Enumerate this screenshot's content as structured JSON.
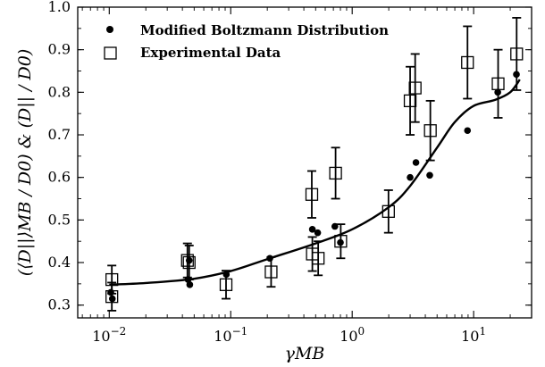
{
  "chart_data": {
    "type": "scatter",
    "xscale": "log",
    "xlim": [
      0.0055,
      30
    ],
    "ylim": [
      0.27,
      1.0
    ],
    "grid": false,
    "legend_position": "top-left",
    "xlabel": "γMB",
    "ylabel": "(⟨D||⟩MB / D0) & (D|| / D0)",
    "x_ticks": [
      {
        "value": 0.01,
        "base": "10",
        "exp": "−2"
      },
      {
        "value": 0.1,
        "base": "10",
        "exp": "−1"
      },
      {
        "value": 1,
        "base": "10",
        "exp": "0"
      },
      {
        "value": 10,
        "base": "10",
        "exp": "1"
      }
    ],
    "y_ticks": [
      "0.3",
      "0.4",
      "0.5",
      "0.6",
      "0.7",
      "0.8",
      "0.9",
      "1.0"
    ],
    "series": [
      {
        "name": "Modified Boltzmann Distribution",
        "marker": "dot",
        "points": [
          {
            "x": 0.0103,
            "y": 0.33
          },
          {
            "x": 0.0106,
            "y": 0.315
          },
          {
            "x": 0.0445,
            "y": 0.36
          },
          {
            "x": 0.046,
            "y": 0.348
          },
          {
            "x": 0.0455,
            "y": 0.405
          },
          {
            "x": 0.092,
            "y": 0.372
          },
          {
            "x": 0.21,
            "y": 0.41
          },
          {
            "x": 0.47,
            "y": 0.478
          },
          {
            "x": 0.52,
            "y": 0.47
          },
          {
            "x": 0.72,
            "y": 0.485
          },
          {
            "x": 0.8,
            "y": 0.447
          },
          {
            "x": 3.0,
            "y": 0.6
          },
          {
            "x": 3.35,
            "y": 0.635
          },
          {
            "x": 4.35,
            "y": 0.605
          },
          {
            "x": 8.9,
            "y": 0.71
          },
          {
            "x": 15.8,
            "y": 0.8
          },
          {
            "x": 22.5,
            "y": 0.842
          }
        ],
        "fit_curve": [
          {
            "x": 0.01,
            "y": 0.348
          },
          {
            "x": 0.02,
            "y": 0.352
          },
          {
            "x": 0.05,
            "y": 0.362
          },
          {
            "x": 0.1,
            "y": 0.38
          },
          {
            "x": 0.2,
            "y": 0.408
          },
          {
            "x": 0.5,
            "y": 0.445
          },
          {
            "x": 1.0,
            "y": 0.478
          },
          {
            "x": 2.0,
            "y": 0.53
          },
          {
            "x": 3.0,
            "y": 0.58
          },
          {
            "x": 5.0,
            "y": 0.67
          },
          {
            "x": 7.0,
            "y": 0.73
          },
          {
            "x": 10.0,
            "y": 0.768
          },
          {
            "x": 15.0,
            "y": 0.782
          },
          {
            "x": 20.0,
            "y": 0.8
          },
          {
            "x": 24.0,
            "y": 0.83
          }
        ]
      },
      {
        "name": "Experimental Data",
        "marker": "open-square",
        "points": [
          {
            "x": 0.0105,
            "y": 0.36,
            "err": 0.033
          },
          {
            "x": 0.0105,
            "y": 0.32,
            "err": 0.033
          },
          {
            "x": 0.044,
            "y": 0.405,
            "err": 0.04
          },
          {
            "x": 0.0455,
            "y": 0.4,
            "err": 0.04
          },
          {
            "x": 0.0915,
            "y": 0.348,
            "err": 0.033
          },
          {
            "x": 0.215,
            "y": 0.378,
            "err": 0.035
          },
          {
            "x": 0.465,
            "y": 0.56,
            "err": 0.055
          },
          {
            "x": 0.47,
            "y": 0.42,
            "err": 0.04
          },
          {
            "x": 0.525,
            "y": 0.41,
            "err": 0.04
          },
          {
            "x": 0.73,
            "y": 0.61,
            "err": 0.06
          },
          {
            "x": 0.805,
            "y": 0.45,
            "err": 0.04
          },
          {
            "x": 1.99,
            "y": 0.52,
            "err": 0.05
          },
          {
            "x": 3.0,
            "y": 0.78,
            "err": 0.08
          },
          {
            "x": 3.3,
            "y": 0.81,
            "err": 0.08
          },
          {
            "x": 4.4,
            "y": 0.71,
            "err": 0.07
          },
          {
            "x": 8.9,
            "y": 0.87,
            "err": 0.085
          },
          {
            "x": 15.9,
            "y": 0.82,
            "err": 0.08
          },
          {
            "x": 22.6,
            "y": 0.89,
            "err": 0.085
          }
        ]
      }
    ]
  },
  "colors": {
    "ink": "#000000",
    "background": "#ffffff"
  }
}
